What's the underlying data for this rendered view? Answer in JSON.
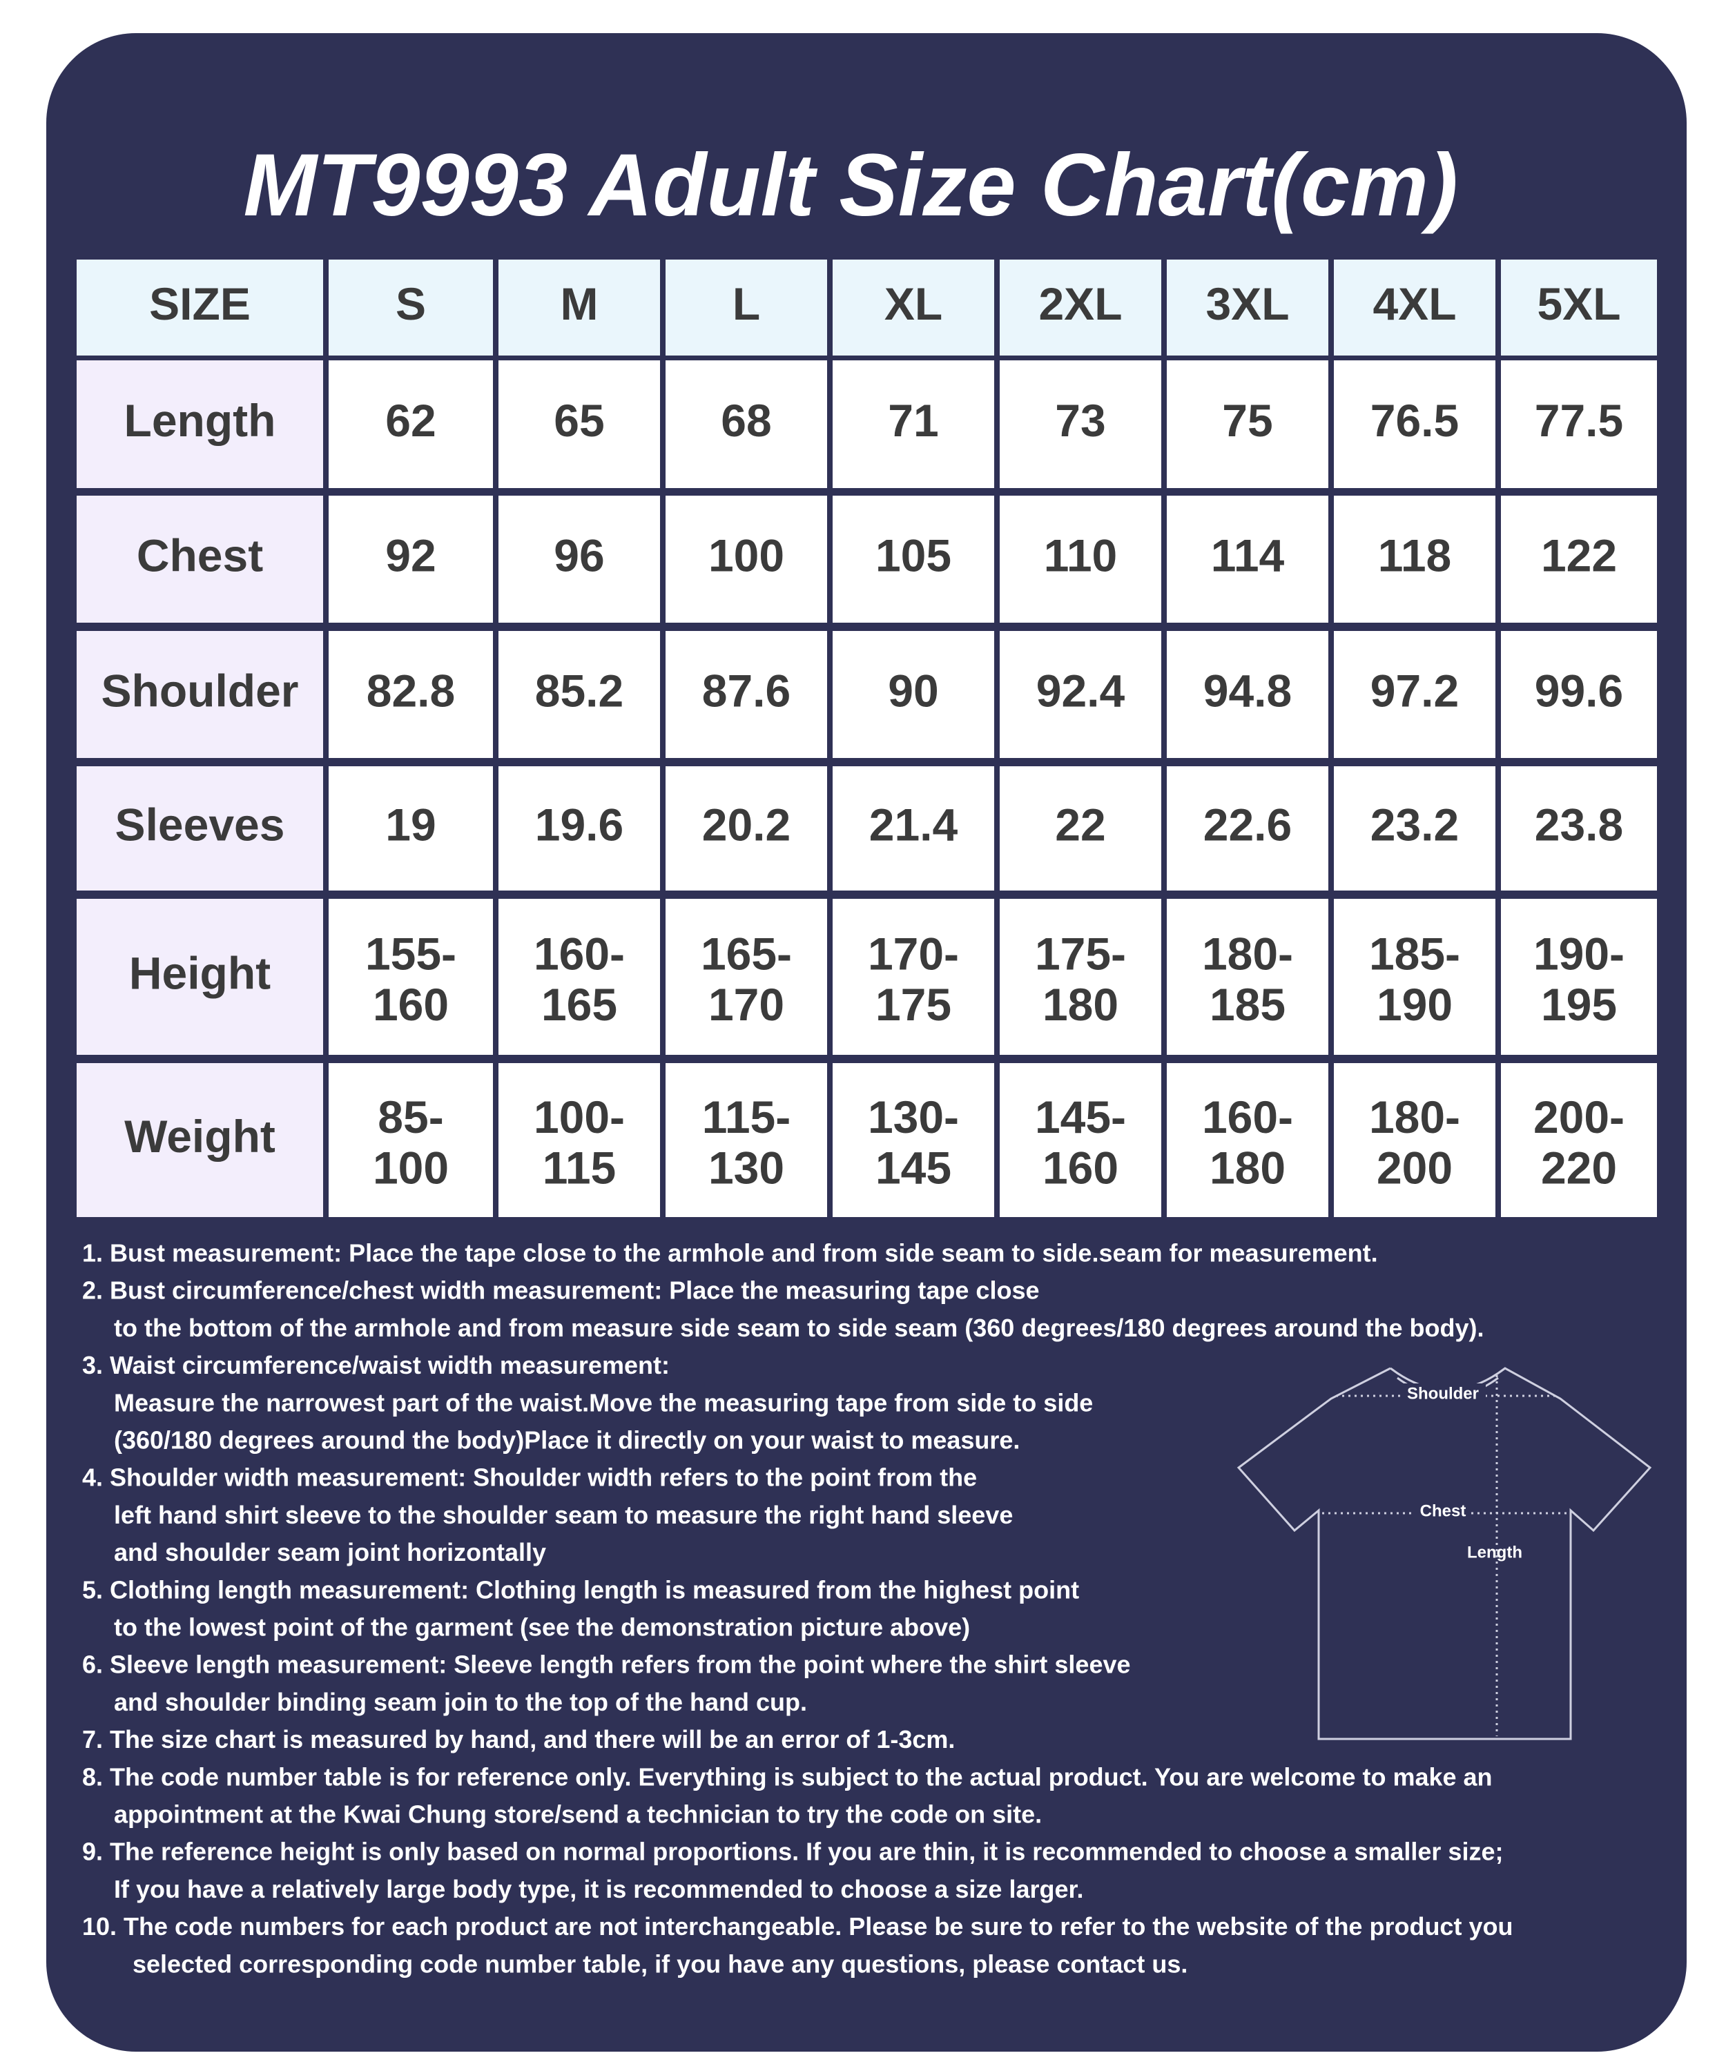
{
  "header": {
    "title": "MT9993 Adult Size Chart(cm)"
  },
  "table": {
    "columns": [
      "SIZE",
      "S",
      "M",
      "L",
      "XL",
      "2XL",
      "3XL",
      "4XL",
      "5XL"
    ],
    "rows": [
      [
        "Length",
        "62",
        "65",
        "68",
        "71",
        "73",
        "75",
        "76.5",
        "77.5"
      ],
      [
        "Chest",
        "92",
        "96",
        "100",
        "105",
        "110",
        "114",
        "118",
        "122"
      ],
      [
        "Shoulder",
        "82.8",
        "85.2",
        "87.6",
        "90",
        "92.4",
        "94.8",
        "97.2",
        "99.6"
      ],
      [
        "Sleeves",
        "19",
        "19.6",
        "20.2",
        "21.4",
        "22",
        "22.6",
        "23.2",
        "23.8"
      ],
      [
        "Height",
        "155-160",
        "160-165",
        "165-170",
        "170-175",
        "175-180",
        "180-185",
        "185-190",
        "190-195"
      ],
      [
        "Weight",
        "85-100",
        "100-115",
        "115-130",
        "130-145",
        "145-160",
        "160-180",
        "180-200",
        "200-220"
      ]
    ]
  },
  "notes": [
    [
      "1. Bust measurement: Place the tape close to the armhole and from side seam to side.seam for measurement."
    ],
    [
      "2. Bust circumference/chest width measurement: Place the measuring tape close",
      "to the bottom of the armhole and from measure side seam to side seam (360 degrees/180 degrees around the body)."
    ],
    [
      "3. Waist circumference/waist width measurement:",
      "Measure the narrowest part of the waist.Move the measuring tape from side to side",
      "(360/180 degrees around the body)Place it directly on your waist to measure."
    ],
    [
      "4. Shoulder width measurement: Shoulder width refers to the point from the",
      "left hand shirt sleeve to the shoulder seam to measure the right hand sleeve",
      "and shoulder seam joint horizontally"
    ],
    [
      "5. Clothing length measurement: Clothing length is measured from the highest point",
      "to the lowest point of the garment (see the demonstration picture above)"
    ],
    [
      "6. Sleeve length measurement: Sleeve length refers from the point where the shirt sleeve",
      "and shoulder binding seam join to the top of the hand cup."
    ],
    [
      "7. The size chart is measured by hand, and there will be an error of 1-3cm."
    ],
    [
      "8. The code number table is for reference only. Everything is subject to the actual product. You are welcome to make an",
      "appointment at the Kwai Chung store/send a technician to try the code on site."
    ],
    [
      "9. The reference height is only based on normal proportions. If you are thin, it is recommended to choose a smaller size;",
      "If you have a relatively large body type, it is recommended to choose a size larger."
    ],
    [
      "10. The code numbers for each product are not interchangeable. Please be sure to refer to the website of the product you",
      "selected corresponding code number table, if you have any questions, please contact us."
    ]
  ],
  "diagram": {
    "labels": [
      "Shoulder",
      "Chest",
      "Length"
    ]
  }
}
